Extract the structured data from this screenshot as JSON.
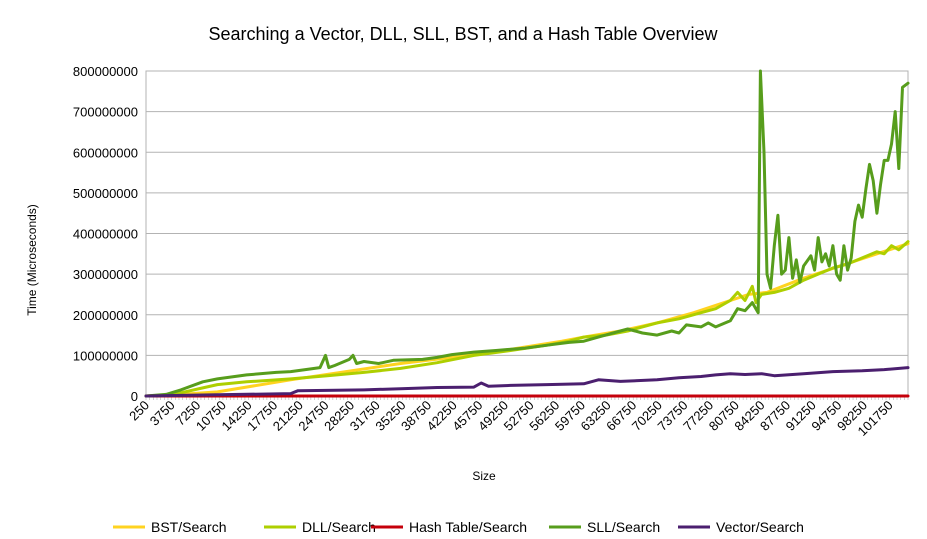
{
  "chart_data": {
    "type": "line",
    "title": "Searching a Vector, DLL, SLL, BST, and a Hash Table Overview",
    "xlabel": "Size",
    "ylabel": "Time (Microseconds)",
    "xlim": [
      250,
      104250
    ],
    "ylim": [
      0,
      800000000
    ],
    "grid": true,
    "legend_position": "bottom",
    "y_ticks": [
      "0",
      "100000000",
      "200000000",
      "300000000",
      "400000000",
      "500000000",
      "600000000",
      "700000000",
      "800000000"
    ],
    "x_ticks": [
      "250",
      "3750",
      "7250",
      "10750",
      "14250",
      "17750",
      "21250",
      "24750",
      "28250",
      "31750",
      "35250",
      "38750",
      "42250",
      "45750",
      "49250",
      "52750",
      "56250",
      "59750",
      "63250",
      "66750",
      "70250",
      "73750",
      "77250",
      "80750",
      "84250",
      "87750",
      "91250",
      "94750",
      "98250",
      "101750"
    ],
    "series": [
      {
        "name": "BST/Search",
        "color": "#ffd320",
        "points": [
          [
            250,
            0
          ],
          [
            5000,
            4000000
          ],
          [
            10000,
            10000000
          ],
          [
            20000,
            40000000
          ],
          [
            35000,
            80000000
          ],
          [
            42000,
            95000000
          ],
          [
            50000,
            115000000
          ],
          [
            57000,
            135000000
          ],
          [
            60000,
            145000000
          ],
          [
            65000,
            160000000
          ],
          [
            70000,
            180000000
          ],
          [
            75000,
            205000000
          ],
          [
            80000,
            235000000
          ],
          [
            82500,
            250000000
          ],
          [
            85000,
            255000000
          ],
          [
            90000,
            290000000
          ],
          [
            95000,
            320000000
          ],
          [
            100000,
            350000000
          ],
          [
            104250,
            375000000
          ]
        ]
      },
      {
        "name": "DLL/Search",
        "color": "#aecf00",
        "points": [
          [
            250,
            0
          ],
          [
            3000,
            2000000
          ],
          [
            5000,
            8000000
          ],
          [
            8000,
            20000000
          ],
          [
            10000,
            28000000
          ],
          [
            14000,
            35000000
          ],
          [
            20000,
            42000000
          ],
          [
            25000,
            50000000
          ],
          [
            30000,
            58000000
          ],
          [
            35000,
            68000000
          ],
          [
            40000,
            82000000
          ],
          [
            45000,
            100000000
          ],
          [
            50000,
            112000000
          ],
          [
            55000,
            125000000
          ],
          [
            58000,
            135000000
          ],
          [
            60000,
            145000000
          ],
          [
            63000,
            150000000
          ],
          [
            66000,
            160000000
          ],
          [
            68000,
            170000000
          ],
          [
            70000,
            180000000
          ],
          [
            73000,
            190000000
          ],
          [
            76000,
            205000000
          ],
          [
            78000,
            215000000
          ],
          [
            80000,
            235000000
          ],
          [
            81000,
            255000000
          ],
          [
            82000,
            235000000
          ],
          [
            83000,
            270000000
          ],
          [
            83500,
            230000000
          ],
          [
            84250,
            250000000
          ],
          [
            86000,
            255000000
          ],
          [
            88000,
            265000000
          ],
          [
            90000,
            285000000
          ],
          [
            92000,
            300000000
          ],
          [
            94000,
            315000000
          ],
          [
            96000,
            325000000
          ],
          [
            98000,
            340000000
          ],
          [
            100000,
            355000000
          ],
          [
            101000,
            350000000
          ],
          [
            102000,
            370000000
          ],
          [
            103000,
            360000000
          ],
          [
            104250,
            380000000
          ]
        ]
      },
      {
        "name": "Hash Table/Search",
        "color": "#c5000b",
        "points": [
          [
            250,
            0
          ],
          [
            104250,
            0
          ]
        ]
      },
      {
        "name": "SLL/Search",
        "color": "#579d1c",
        "points": [
          [
            250,
            0
          ],
          [
            3000,
            4000000
          ],
          [
            5000,
            15000000
          ],
          [
            8000,
            35000000
          ],
          [
            10000,
            42000000
          ],
          [
            14000,
            52000000
          ],
          [
            18000,
            58000000
          ],
          [
            20000,
            60000000
          ],
          [
            22000,
            65000000
          ],
          [
            24000,
            70000000
          ],
          [
            24750,
            100000000
          ],
          [
            25200,
            70000000
          ],
          [
            26000,
            75000000
          ],
          [
            28000,
            90000000
          ],
          [
            28500,
            100000000
          ],
          [
            29000,
            80000000
          ],
          [
            30000,
            85000000
          ],
          [
            32000,
            80000000
          ],
          [
            34000,
            88000000
          ],
          [
            38000,
            90000000
          ],
          [
            40000,
            95000000
          ],
          [
            42000,
            102000000
          ],
          [
            45000,
            108000000
          ],
          [
            48000,
            112000000
          ],
          [
            52000,
            118000000
          ],
          [
            55000,
            125000000
          ],
          [
            58000,
            132000000
          ],
          [
            60000,
            135000000
          ],
          [
            62000,
            145000000
          ],
          [
            64000,
            155000000
          ],
          [
            66000,
            165000000
          ],
          [
            67000,
            160000000
          ],
          [
            68000,
            155000000
          ],
          [
            70000,
            150000000
          ],
          [
            72000,
            160000000
          ],
          [
            73000,
            155000000
          ],
          [
            74000,
            175000000
          ],
          [
            76000,
            170000000
          ],
          [
            77000,
            180000000
          ],
          [
            78000,
            170000000
          ],
          [
            80000,
            185000000
          ],
          [
            81000,
            215000000
          ],
          [
            82000,
            210000000
          ],
          [
            83000,
            230000000
          ],
          [
            83800,
            205000000
          ],
          [
            84100,
            800000000
          ],
          [
            84600,
            600000000
          ],
          [
            85000,
            300000000
          ],
          [
            85500,
            265000000
          ],
          [
            86000,
            370000000
          ],
          [
            86500,
            445000000
          ],
          [
            87000,
            300000000
          ],
          [
            87500,
            310000000
          ],
          [
            88000,
            390000000
          ],
          [
            88500,
            290000000
          ],
          [
            89000,
            335000000
          ],
          [
            89500,
            280000000
          ],
          [
            90000,
            320000000
          ],
          [
            91000,
            345000000
          ],
          [
            91500,
            310000000
          ],
          [
            92000,
            390000000
          ],
          [
            92500,
            330000000
          ],
          [
            93000,
            350000000
          ],
          [
            93500,
            320000000
          ],
          [
            94000,
            370000000
          ],
          [
            94500,
            300000000
          ],
          [
            95000,
            285000000
          ],
          [
            95500,
            370000000
          ],
          [
            96000,
            310000000
          ],
          [
            96500,
            340000000
          ],
          [
            97000,
            430000000
          ],
          [
            97500,
            470000000
          ],
          [
            98000,
            440000000
          ],
          [
            98500,
            510000000
          ],
          [
            99000,
            570000000
          ],
          [
            99500,
            530000000
          ],
          [
            100000,
            450000000
          ],
          [
            100500,
            520000000
          ],
          [
            101000,
            580000000
          ],
          [
            101500,
            580000000
          ],
          [
            102000,
            620000000
          ],
          [
            102500,
            700000000
          ],
          [
            103000,
            560000000
          ],
          [
            103500,
            760000000
          ],
          [
            104250,
            770000000
          ]
        ]
      },
      {
        "name": "Vector/Search",
        "color": "#4b1f6f",
        "points": [
          [
            250,
            0
          ],
          [
            5000,
            1500000
          ],
          [
            10000,
            3000000
          ],
          [
            20000,
            6000000
          ],
          [
            21000,
            13000000
          ],
          [
            30000,
            15000000
          ],
          [
            35000,
            18000000
          ],
          [
            40000,
            21000000
          ],
          [
            45000,
            22000000
          ],
          [
            46000,
            32000000
          ],
          [
            47000,
            24000000
          ],
          [
            50000,
            26000000
          ],
          [
            55000,
            28000000
          ],
          [
            60000,
            30000000
          ],
          [
            62000,
            40000000
          ],
          [
            65000,
            36000000
          ],
          [
            70000,
            40000000
          ],
          [
            73000,
            45000000
          ],
          [
            76000,
            48000000
          ],
          [
            78000,
            52000000
          ],
          [
            80000,
            55000000
          ],
          [
            82000,
            53000000
          ],
          [
            84250,
            55000000
          ],
          [
            86000,
            50000000
          ],
          [
            90000,
            55000000
          ],
          [
            94000,
            60000000
          ],
          [
            98000,
            62000000
          ],
          [
            101000,
            65000000
          ],
          [
            104250,
            70000000
          ]
        ]
      }
    ]
  }
}
